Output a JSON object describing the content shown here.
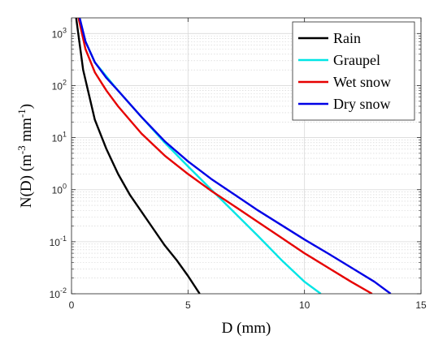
{
  "chart_data": {
    "type": "line",
    "xlabel": "D (mm)",
    "ylabel_main": "N(D) (m",
    "ylabel_sup1": "-3",
    "ylabel_mid": " mm",
    "ylabel_sup2": "-1",
    "ylabel_end": ")",
    "xlim": [
      0,
      15
    ],
    "ylim": [
      0.01,
      2000
    ],
    "yscale": "log",
    "grid": true,
    "legend_position": "top-right",
    "xticks": [
      {
        "value": 0,
        "label": "0"
      },
      {
        "value": 5,
        "label": "5"
      },
      {
        "value": 10,
        "label": "10"
      },
      {
        "value": 15,
        "label": "15"
      }
    ],
    "yticks": [
      {
        "value": 0.01,
        "base": "10",
        "exp": "-2"
      },
      {
        "value": 0.1,
        "base": "10",
        "exp": "-1"
      },
      {
        "value": 1,
        "base": "10",
        "exp": "0"
      },
      {
        "value": 10,
        "base": "10",
        "exp": "1"
      },
      {
        "value": 100,
        "base": "10",
        "exp": "2"
      },
      {
        "value": 1000,
        "base": "10",
        "exp": "3"
      }
    ],
    "series": [
      {
        "name": "Rain",
        "color": "#000000",
        "x": [
          0.2,
          0.5,
          1.0,
          1.5,
          2.0,
          2.5,
          3.0,
          3.5,
          4.0,
          4.5,
          5.0,
          5.5
        ],
        "y": [
          2000,
          200,
          22,
          6,
          2,
          0.8,
          0.38,
          0.18,
          0.085,
          0.045,
          0.022,
          0.01
        ]
      },
      {
        "name": "Graupel",
        "color": "#00e5e5",
        "x": [
          0.35,
          0.6,
          1.0,
          1.5,
          2.0,
          3.0,
          4.0,
          5.0,
          6.0,
          7.0,
          8.0,
          9.0,
          10.0,
          10.7
        ],
        "y": [
          2000,
          700,
          280,
          150,
          80,
          25,
          8,
          2.8,
          1.0,
          0.36,
          0.13,
          0.045,
          0.017,
          0.01
        ]
      },
      {
        "name": "Wet snow",
        "color": "#e60000",
        "x": [
          0.3,
          0.6,
          1.0,
          1.5,
          2.0,
          3.0,
          4.0,
          5.0,
          6.0,
          7.0,
          8.0,
          9.0,
          10.0,
          11.0,
          12.0,
          12.9
        ],
        "y": [
          2000,
          500,
          180,
          80,
          40,
          12,
          4.5,
          2.0,
          0.95,
          0.48,
          0.24,
          0.12,
          0.06,
          0.032,
          0.017,
          0.01
        ]
      },
      {
        "name": "Dry snow",
        "color": "#0000e6",
        "x": [
          0.35,
          0.6,
          1.0,
          1.5,
          2.0,
          3.0,
          4.0,
          5.0,
          6.0,
          7.0,
          8.0,
          9.0,
          10.0,
          11.0,
          12.0,
          13.0,
          13.7
        ],
        "y": [
          2000,
          700,
          280,
          140,
          80,
          25,
          8.5,
          3.5,
          1.6,
          0.8,
          0.4,
          0.21,
          0.11,
          0.06,
          0.032,
          0.017,
          0.01
        ]
      }
    ]
  }
}
